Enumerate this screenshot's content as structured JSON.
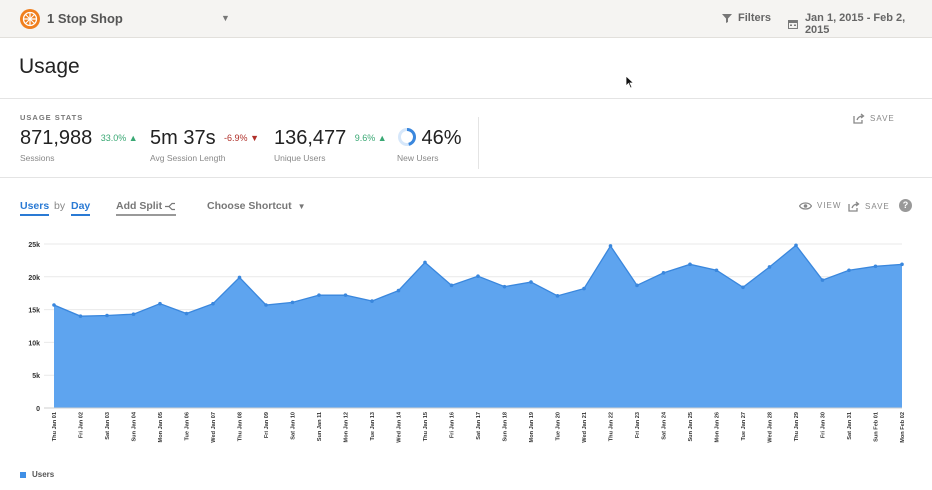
{
  "topbar": {
    "app_name": "1 Stop Shop",
    "filters_label": "Filters",
    "date_range": "Jan 1, 2015 - Feb 2, 2015"
  },
  "page": {
    "title": "Usage"
  },
  "stats": {
    "heading": "USAGE STATS",
    "save_label": "SAVE",
    "sessions": {
      "value": "871,988",
      "delta": "33.0%",
      "direction": "up",
      "label": "Sessions"
    },
    "avg_session": {
      "value": "5m 37s",
      "delta": "-6.9%",
      "direction": "down",
      "label": "Avg Session Length"
    },
    "unique_users": {
      "value": "136,477",
      "delta": "9.6%",
      "direction": "up",
      "label": "Unique Users"
    },
    "new_users": {
      "value": "46%",
      "fraction": 0.46,
      "label": "New Users"
    }
  },
  "controls": {
    "metric": "Users",
    "by": "by",
    "interval": "Day",
    "add_split": "Add Split",
    "shortcut": "Choose Shortcut",
    "view_label": "VIEW",
    "save_label": "SAVE",
    "help": "?"
  },
  "colors": {
    "series_fill": "#5ea4ef",
    "series_line": "#3a87dd",
    "up": "#3aa874",
    "down": "#b0302a",
    "accent": "#2a7ad4",
    "brand": "#f07f1e"
  },
  "chart_data": {
    "type": "area",
    "ylim": [
      0,
      25000
    ],
    "yticks": [
      "0",
      "5k",
      "10k",
      "15k",
      "20k",
      "25k"
    ],
    "ytick_values": [
      0,
      5000,
      10000,
      15000,
      20000,
      25000
    ],
    "grid": true,
    "legend": "bottom-left",
    "x": [
      "Thu Jan 01",
      "Fri Jan 02",
      "Sat Jan 03",
      "Sun Jan 04",
      "Mon Jan 05",
      "Tue Jan 06",
      "Wed Jan 07",
      "Thu Jan 08",
      "Fri Jan 09",
      "Sat Jan 10",
      "Sun Jan 11",
      "Mon Jan 12",
      "Tue Jan 13",
      "Wed Jan 14",
      "Thu Jan 15",
      "Fri Jan 16",
      "Sat Jan 17",
      "Sun Jan 18",
      "Mon Jan 19",
      "Tue Jan 20",
      "Wed Jan 21",
      "Thu Jan 22",
      "Fri Jan 23",
      "Sat Jan 24",
      "Sun Jan 25",
      "Mon Jan 26",
      "Tue Jan 27",
      "Wed Jan 28",
      "Thu Jan 29",
      "Fri Jan 30",
      "Sat Jan 31",
      "Sun Feb 01",
      "Mon Feb 02"
    ],
    "series": [
      {
        "name": "Users",
        "values": [
          15700,
          14000,
          14100,
          14300,
          15900,
          14400,
          15900,
          19900,
          15700,
          16100,
          17200,
          17200,
          16300,
          17900,
          22200,
          18700,
          20100,
          18500,
          19200,
          17100,
          18200,
          24700,
          18700,
          20600,
          21900,
          21000,
          18400,
          21500,
          24800,
          19500,
          21000,
          21600,
          21900
        ]
      }
    ]
  }
}
